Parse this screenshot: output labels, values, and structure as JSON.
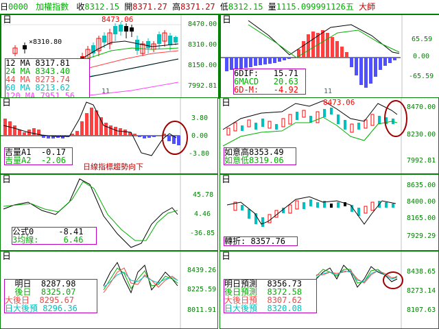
{
  "header": {
    "period": "日",
    "code": "0000",
    "name": "加權指數",
    "close_label": "收",
    "close": "8312.15",
    "open_label": "開",
    "open": "8371.27",
    "high_label": "高",
    "high": "8371.27",
    "low_label": "低",
    "low": "8312.15",
    "volume_label": "量",
    "volume": "1115.0999",
    "time": "91126",
    "weekday": "五",
    "brand": "大師"
  },
  "panels": {
    "ma": {
      "corner": "日",
      "top_label": "8473.06",
      "min_label": "×8310.80",
      "axis": [
        "8470.00",
        "8310.00",
        "8150.00",
        "7992.81"
      ],
      "bottom_tick": "11",
      "legend": [
        {
          "text": "12 MA 8317.81",
          "color": "#000000"
        },
        {
          "text": "24 MA 8343.40",
          "color": "#00b000"
        },
        {
          "text": "44 MA 8273.74",
          "color": "#ff4040"
        },
        {
          "text": "60 MA 8213.62",
          "color": "#00c0c0"
        },
        {
          "text": "120 MA 7951.56",
          "color": "#ff40ff"
        }
      ]
    },
    "macd": {
      "corner": "日",
      "axis": [
        "65.59",
        "0.00",
        "-65.59"
      ],
      "bottom_tick": "11",
      "legend": [
        {
          "text": "6DIF:   15.71",
          "color": "#000000"
        },
        {
          "text": "6MACD   20.63",
          "color": "#00b000"
        },
        {
          "text": "6D-M:   -4.92",
          "color": "#ff0000"
        }
      ]
    },
    "jiliang": {
      "corner": "日",
      "axis": [
        "3.80",
        "0.00",
        "-3.80"
      ],
      "legend": [
        {
          "text": "吉量A1  -0.17",
          "color": "#000000"
        },
        {
          "text": "吉量A2  -2.06",
          "color": "#00b000"
        }
      ],
      "annotation": "日線指標趨勢向下"
    },
    "ruyi": {
      "corner": "日",
      "top_label": "8473.06",
      "axis": [
        "8470.00",
        "8230.00",
        "7992.81"
      ],
      "legend": [
        {
          "text": "如意高8353.49",
          "color": "#000000"
        },
        {
          "text": "如意低8319.06",
          "color": "#00b000"
        }
      ]
    },
    "formula": {
      "corner": "日",
      "axis": [
        "45.78",
        "4.46",
        "-36.85"
      ],
      "legend": [
        {
          "text": "公式0     -8.41",
          "color": "#000000"
        },
        {
          "text": "3均線:     6.46",
          "color": "#00b000"
        }
      ]
    },
    "turn": {
      "corner": "日",
      "axis": [
        "8635.00",
        "8400.00",
        "8165.00",
        "7929.29"
      ],
      "legend": [
        {
          "text": "轉折: 8357.76",
          "color": "#000000"
        }
      ]
    },
    "tomorrow": {
      "corner": "日",
      "axis": [
        "8439.26",
        "8225.59",
        "8011.91"
      ],
      "legend": [
        {
          "text": "  明日  8287.98",
          "color": "#000000"
        },
        {
          "text": "  後日  8325.07",
          "color": "#00b000"
        },
        {
          "text": "大後日  8295.67",
          "color": "#ff4040"
        },
        {
          "text": "日大後預 8296.36",
          "color": "#00c0c0"
        }
      ]
    },
    "forecast": {
      "corner": "日",
      "axis": [
        "8438.65",
        "8273.14",
        "8107.63"
      ],
      "legend": [
        {
          "text": "明日預測  8356.73",
          "color": "#000000"
        },
        {
          "text": "後日預測  8372.58",
          "color": "#00b000"
        },
        {
          "text": "大後日預  8307.62",
          "color": "#ff4040"
        },
        {
          "text": "日大後預  8320.08",
          "color": "#00c0c0"
        }
      ]
    }
  }
}
